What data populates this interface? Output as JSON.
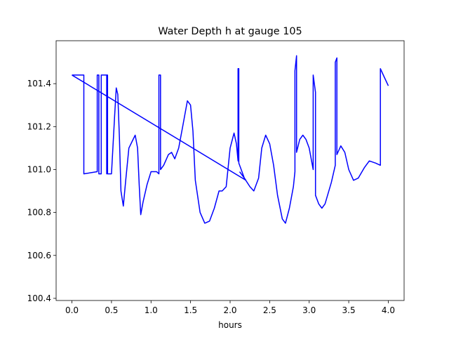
{
  "chart_data": {
    "type": "line",
    "title": "Water Depth h at gauge 105",
    "xlabel": "hours",
    "ylabel": "",
    "xlim": [
      -0.2,
      4.2
    ],
    "ylim": [
      100.39,
      101.6
    ],
    "x_ticks": [
      "0.0",
      "0.5",
      "1.0",
      "1.5",
      "2.0",
      "2.5",
      "3.0",
      "3.5",
      "4.0"
    ],
    "y_ticks": [
      "100.4",
      "100.6",
      "100.8",
      "101.0",
      "101.2",
      "101.4"
    ],
    "grid": false,
    "legend": "none",
    "series": [
      {
        "color": "#0000ff",
        "points": [
          [
            0.0,
            101.44
          ],
          [
            0.15,
            101.44
          ],
          [
            0.15,
            100.98
          ],
          [
            0.32,
            100.99
          ],
          [
            0.32,
            101.44
          ],
          [
            0.34,
            101.44
          ],
          [
            0.34,
            100.98
          ],
          [
            0.37,
            100.98
          ],
          [
            0.37,
            101.44
          ],
          [
            0.44,
            101.44
          ],
          [
            0.44,
            100.98
          ],
          [
            0.44,
            101.44
          ],
          [
            0.45,
            101.44
          ],
          [
            0.45,
            100.98
          ],
          [
            0.5,
            100.98
          ],
          [
            0.54,
            101.25
          ],
          [
            0.56,
            101.38
          ],
          [
            0.58,
            101.35
          ],
          [
            0.6,
            101.15
          ],
          [
            0.62,
            100.9
          ],
          [
            0.65,
            100.83
          ],
          [
            0.68,
            100.95
          ],
          [
            0.72,
            101.1
          ],
          [
            0.8,
            101.16
          ],
          [
            0.83,
            101.1
          ],
          [
            0.85,
            100.93
          ],
          [
            0.87,
            100.79
          ],
          [
            0.9,
            100.85
          ],
          [
            0.95,
            100.93
          ],
          [
            1.0,
            100.99
          ],
          [
            1.07,
            100.99
          ],
          [
            1.1,
            100.98
          ],
          [
            1.1,
            101.44
          ],
          [
            1.12,
            101.44
          ],
          [
            1.12,
            101.0
          ],
          [
            1.16,
            101.02
          ],
          [
            1.22,
            101.07
          ],
          [
            1.26,
            101.08
          ],
          [
            1.3,
            101.05
          ],
          [
            1.35,
            101.1
          ],
          [
            1.4,
            101.2
          ],
          [
            1.46,
            101.32
          ],
          [
            1.5,
            101.3
          ],
          [
            1.53,
            101.18
          ],
          [
            1.56,
            100.95
          ],
          [
            1.62,
            100.8
          ],
          [
            1.68,
            100.75
          ],
          [
            1.74,
            100.76
          ],
          [
            1.8,
            100.82
          ],
          [
            1.86,
            100.9
          ],
          [
            1.9,
            100.9
          ],
          [
            1.95,
            100.92
          ],
          [
            2.0,
            101.1
          ],
          [
            2.05,
            101.17
          ],
          [
            2.08,
            101.12
          ],
          [
            2.1,
            101.04
          ],
          [
            2.1,
            101.47
          ],
          [
            2.11,
            101.47
          ],
          [
            2.11,
            101.03
          ],
          [
            2.18,
            100.96
          ],
          [
            2.25,
            100.92
          ],
          [
            2.3,
            100.9
          ],
          [
            2.36,
            100.96
          ],
          [
            2.4,
            101.1
          ],
          [
            2.45,
            101.16
          ],
          [
            2.5,
            101.12
          ],
          [
            2.55,
            101.02
          ],
          [
            2.6,
            100.88
          ],
          [
            2.66,
            100.77
          ],
          [
            2.7,
            100.75
          ],
          [
            2.75,
            100.82
          ],
          [
            2.8,
            100.92
          ],
          [
            2.82,
            100.99
          ],
          [
            2.82,
            101.46
          ],
          [
            2.84,
            101.53
          ],
          [
            2.84,
            101.08
          ],
          [
            2.88,
            101.14
          ],
          [
            2.92,
            101.16
          ],
          [
            2.96,
            101.14
          ],
          [
            3.0,
            101.1
          ],
          [
            3.05,
            101.0
          ],
          [
            3.05,
            101.44
          ],
          [
            3.08,
            101.36
          ],
          [
            3.08,
            100.88
          ],
          [
            3.12,
            100.84
          ],
          [
            3.16,
            100.82
          ],
          [
            3.2,
            100.84
          ],
          [
            3.28,
            100.94
          ],
          [
            3.33,
            101.02
          ],
          [
            3.33,
            101.5
          ],
          [
            3.35,
            101.52
          ],
          [
            3.35,
            101.07
          ],
          [
            3.4,
            101.11
          ],
          [
            3.45,
            101.08
          ],
          [
            3.5,
            101.0
          ],
          [
            3.56,
            100.95
          ],
          [
            3.62,
            100.96
          ],
          [
            3.7,
            101.01
          ],
          [
            3.76,
            101.04
          ],
          [
            3.84,
            101.03
          ],
          [
            3.9,
            101.02
          ],
          [
            3.9,
            101.47
          ],
          [
            3.95,
            101.43
          ],
          [
            4.0,
            101.39
          ]
        ]
      }
    ]
  }
}
